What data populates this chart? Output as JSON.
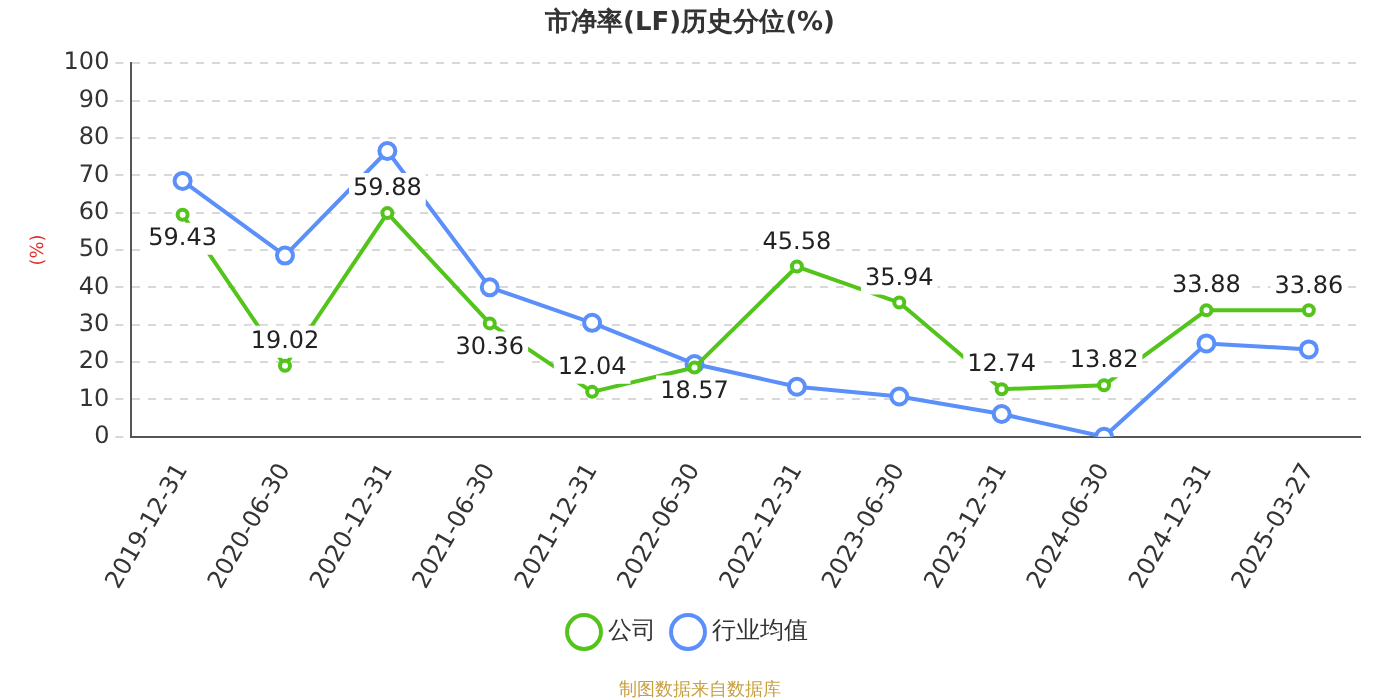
{
  "chart_data": {
    "type": "line",
    "title": "市净率(LF)历史分位(%)",
    "ylabel": "(%)",
    "categories": [
      "2019-12-31",
      "2020-06-30",
      "2020-12-31",
      "2021-06-30",
      "2021-12-31",
      "2022-06-30",
      "2022-12-31",
      "2023-06-30",
      "2023-12-31",
      "2024-06-30",
      "2024-12-31",
      "2025-03-27"
    ],
    "series": [
      {
        "name": "公司",
        "color": "#52c41a",
        "values": [
          59.43,
          19.02,
          59.88,
          30.36,
          12.04,
          18.57,
          45.58,
          35.94,
          12.74,
          13.82,
          33.88,
          33.86
        ],
        "value_labels": [
          "59.43",
          "19.02",
          "59.88",
          "30.36",
          "12.04",
          "18.57",
          "45.58",
          "35.94",
          "12.74",
          "13.82",
          "33.88",
          "33.86"
        ]
      },
      {
        "name": "行业均值",
        "color": "#5b8ff9",
        "values": [
          68.5,
          48.5,
          76.5,
          40,
          30.5,
          19.5,
          13.4,
          10.8,
          6.1,
          0,
          25,
          23.4
        ]
      }
    ],
    "ylim": [
      0,
      100
    ],
    "yticks": [
      0,
      10,
      20,
      30,
      40,
      50,
      60,
      70,
      80,
      90,
      100
    ],
    "grid": "y",
    "legend": "bottom",
    "marker": "circle",
    "line_style": "solid",
    "annotations": [
      "制图数据来自数据库"
    ]
  }
}
